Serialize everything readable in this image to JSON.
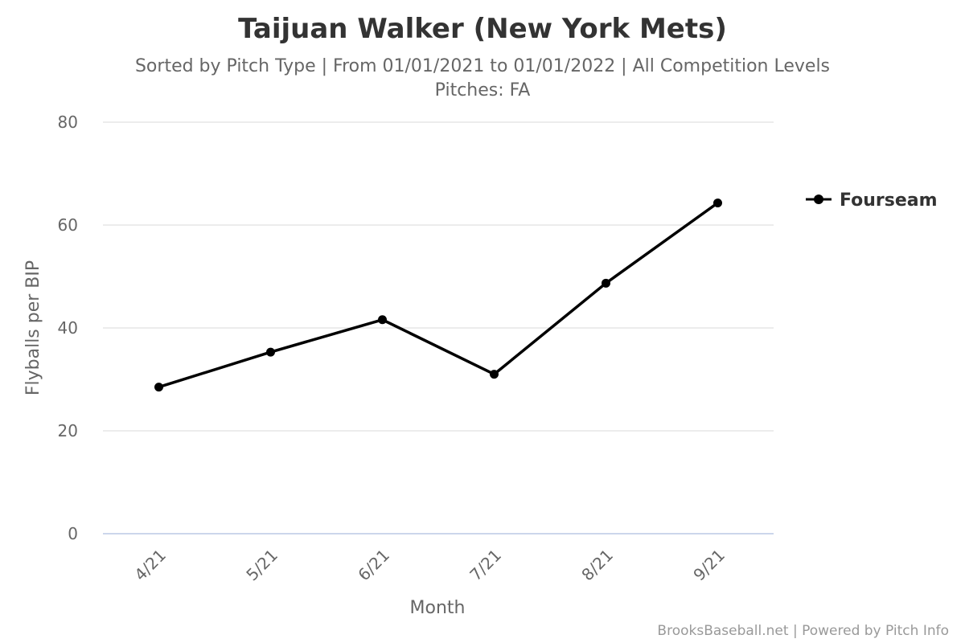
{
  "chart_data": {
    "type": "line",
    "title": "Taijuan Walker (New York Mets)",
    "subtitle_line1": "Sorted by Pitch Type | From 01/01/2021 to 01/01/2022 | All Competition Levels",
    "subtitle_line2": "Pitches: FA",
    "xlabel": "Month",
    "ylabel": "Flyballs per BIP",
    "categories": [
      "4/21",
      "5/21",
      "6/21",
      "7/21",
      "8/21",
      "9/21"
    ],
    "yticks": [
      "0",
      "20",
      "40",
      "60",
      "80"
    ],
    "ylim": [
      0,
      80
    ],
    "grid": true,
    "legend_position": "right",
    "series": [
      {
        "name": "Fourseam",
        "color": "#000000",
        "values": [
          28.5,
          35.3,
          41.6,
          31.0,
          48.7,
          64.3
        ]
      }
    ],
    "credits": "BrooksBaseball.net | Powered by Pitch Info"
  }
}
